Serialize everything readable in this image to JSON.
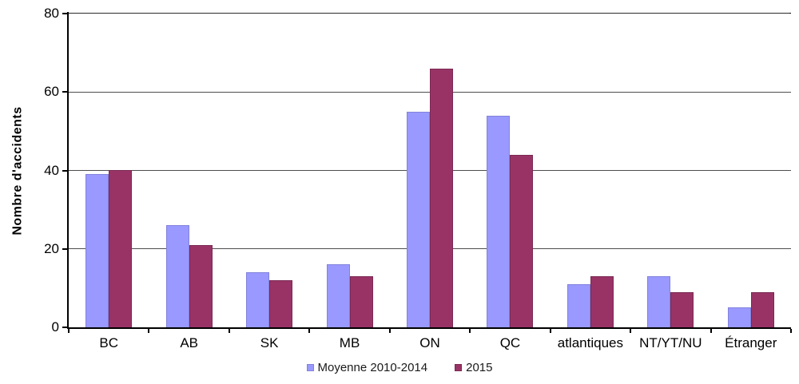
{
  "chart_data": {
    "type": "bar",
    "title": "",
    "xlabel": "",
    "ylabel": "Nombre d'accidents",
    "categories": [
      "BC",
      "AB",
      "SK",
      "MB",
      "ON",
      "QC",
      "atlantiques",
      "NT/YT/NU",
      "Étranger"
    ],
    "series": [
      {
        "name": "Moyenne 2010-2014",
        "color": "#9999FF",
        "border_color": "#8282DC",
        "values": [
          39,
          26,
          14,
          16,
          55,
          54,
          11,
          13,
          5
        ]
      },
      {
        "name": "2015",
        "color": "#993366",
        "border_color": "#7A2952",
        "values": [
          40,
          21,
          12,
          13,
          66,
          44,
          13,
          9,
          9
        ]
      }
    ],
    "ylim": [
      0,
      80
    ],
    "yticks": [
      0,
      20,
      40,
      60,
      80
    ],
    "grid": true,
    "legend_position": "bottom",
    "axis_color": "#000000",
    "gridline_color": "#4d4d4d",
    "background_color": "#ffffff"
  }
}
